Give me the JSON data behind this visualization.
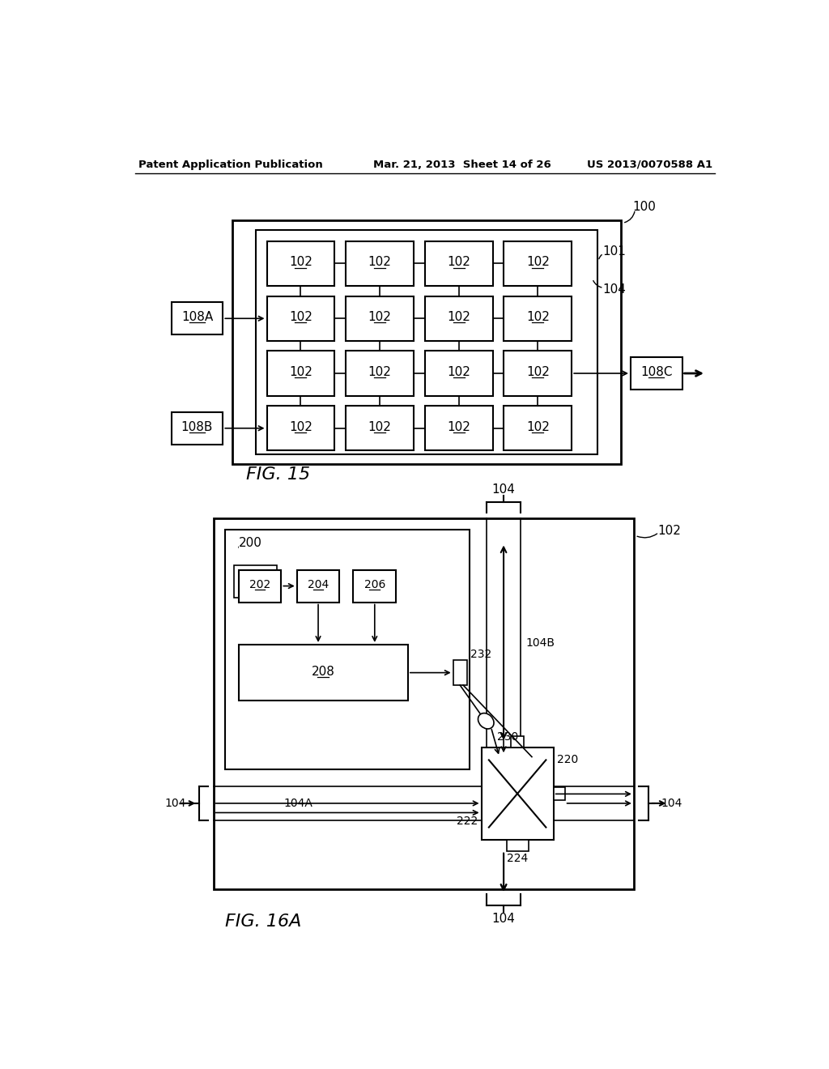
{
  "header_left": "Patent Application Publication",
  "header_mid": "Mar. 21, 2013  Sheet 14 of 26",
  "header_right": "US 2013/0070588 A1",
  "fig15_label": "FIG. 15",
  "fig16a_label": "FIG. 16A",
  "background": "#ffffff"
}
